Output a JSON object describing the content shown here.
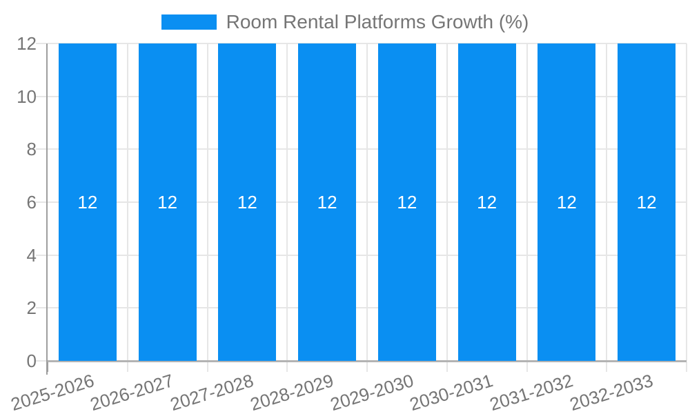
{
  "chart_data": {
    "type": "bar",
    "title": "Room Rental Platforms Growth (%)",
    "legend": {
      "position": "top",
      "label": "Room Rental Platforms Growth (%)"
    },
    "categories": [
      "2025-2026",
      "2026-2027",
      "2027-2028",
      "2028-2029",
      "2029-2030",
      "2030-2031",
      "2031-2032",
      "2032-2033"
    ],
    "values": [
      12,
      12,
      12,
      12,
      12,
      12,
      12,
      12
    ],
    "bar_value_labels": [
      "12",
      "12",
      "12",
      "12",
      "12",
      "12",
      "12",
      "12"
    ],
    "xlabel": "",
    "ylabel": "",
    "ylim": [
      0,
      12
    ],
    "yticks": [
      0,
      2,
      4,
      6,
      8,
      10,
      12
    ],
    "grid": true,
    "colors": {
      "bar": "#0a8ff2",
      "grid": "#e6e6e6",
      "axis_y": "#9e9e9e",
      "axis_x": "#b3b3b3",
      "text": "#757575",
      "value_label": "#ffffff"
    }
  }
}
